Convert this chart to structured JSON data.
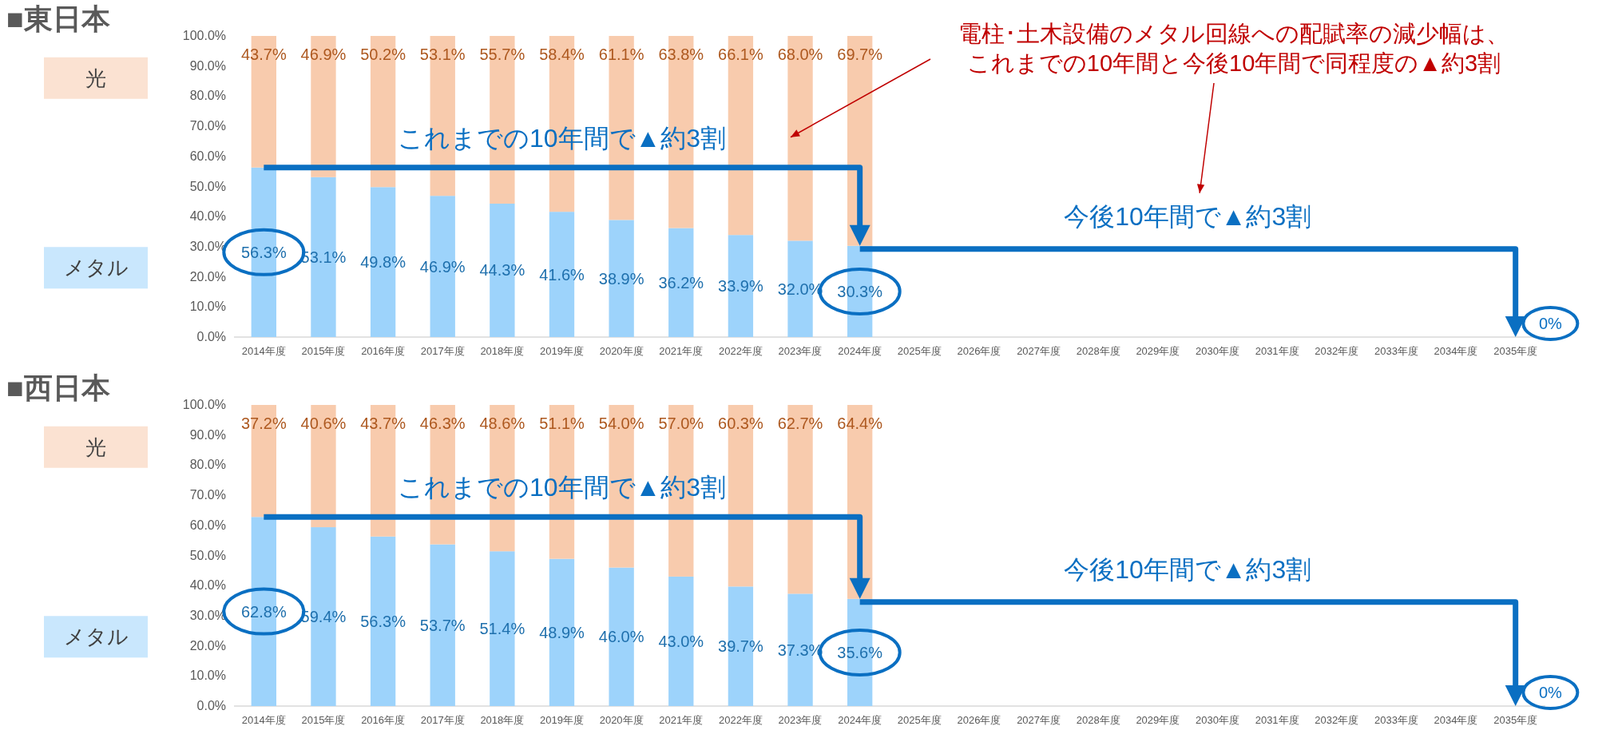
{
  "chart_data": [
    {
      "type": "bar",
      "title": "■東日本",
      "stacked": true,
      "legend": "left",
      "categories": [
        "2014年度",
        "2015年度",
        "2016年度",
        "2017年度",
        "2018年度",
        "2019年度",
        "2020年度",
        "2021年度",
        "2022年度",
        "2023年度",
        "2024年度",
        "2025年度",
        "2026年度",
        "2027年度",
        "2028年度",
        "2029年度",
        "2030年度",
        "2031年度",
        "2032年度",
        "2033年度",
        "2034年度",
        "2035年度"
      ],
      "series": [
        {
          "name": "メタル",
          "color": "#9dd3fb",
          "values": [
            56.3,
            53.1,
            49.8,
            46.9,
            44.3,
            41.6,
            38.9,
            36.2,
            33.9,
            32.0,
            30.3,
            null,
            null,
            null,
            null,
            null,
            null,
            null,
            null,
            null,
            null,
            null
          ],
          "value_labels": [
            "56.3%",
            "53.1%",
            "49.8%",
            "46.9%",
            "44.3%",
            "41.6%",
            "38.9%",
            "36.2%",
            "33.9%",
            "32.0%",
            "30.3%",
            null,
            null,
            null,
            null,
            null,
            null,
            null,
            null,
            null,
            null,
            null
          ]
        },
        {
          "name": "光",
          "color": "#f8cbad",
          "values": [
            43.7,
            46.9,
            50.2,
            53.1,
            55.7,
            58.4,
            61.1,
            63.8,
            66.1,
            68.0,
            69.7,
            null,
            null,
            null,
            null,
            null,
            null,
            null,
            null,
            null,
            null,
            null
          ],
          "value_labels": [
            "43.7%",
            "46.9%",
            "50.2%",
            "53.1%",
            "55.7%",
            "58.4%",
            "61.1%",
            "63.8%",
            "66.1%",
            "68.0%",
            "69.7%",
            null,
            null,
            null,
            null,
            null,
            null,
            null,
            null,
            null,
            null,
            null
          ]
        }
      ],
      "ylim": [
        0,
        100
      ],
      "yticks": [
        {
          "value": 0,
          "label": "0.0%"
        },
        {
          "value": 10,
          "label": "10.0%"
        },
        {
          "value": 20,
          "label": "20.0%"
        },
        {
          "value": 30,
          "label": "30.0%"
        },
        {
          "value": 40,
          "label": "40.0%"
        },
        {
          "value": 50,
          "label": "50.0%"
        },
        {
          "value": 60,
          "label": "60.0%"
        },
        {
          "value": 70,
          "label": "70.0%"
        },
        {
          "value": 80,
          "label": "80.0%"
        },
        {
          "value": 90,
          "label": "90.0%"
        },
        {
          "value": 100,
          "label": "100.0%"
        }
      ],
      "annotations": [
        "これまでの10年間で▲約3割",
        "今後10年間で▲約3割",
        "0%",
        "電柱･土木設備のメタル回線への配賦率の減少幅は、",
        "これまでの10年間と今後10年間で同程度の▲約3割"
      ]
    },
    {
      "type": "bar",
      "title": "■西日本",
      "stacked": true,
      "legend": "left",
      "categories": [
        "2014年度",
        "2015年度",
        "2016年度",
        "2017年度",
        "2018年度",
        "2019年度",
        "2020年度",
        "2021年度",
        "2022年度",
        "2023年度",
        "2024年度",
        "2025年度",
        "2026年度",
        "2027年度",
        "2028年度",
        "2029年度",
        "2030年度",
        "2031年度",
        "2032年度",
        "2033年度",
        "2034年度",
        "2035年度"
      ],
      "series": [
        {
          "name": "メタル",
          "color": "#9dd3fb",
          "values": [
            62.8,
            59.4,
            56.3,
            53.7,
            51.4,
            48.9,
            46.0,
            43.0,
            39.7,
            37.3,
            35.6,
            null,
            null,
            null,
            null,
            null,
            null,
            null,
            null,
            null,
            null,
            null
          ],
          "value_labels": [
            "62.8%",
            "59.4%",
            "56.3%",
            "53.7%",
            "51.4%",
            "48.9%",
            "46.0%",
            "43.0%",
            "39.7%",
            "37.3%",
            "35.6%",
            null,
            null,
            null,
            null,
            null,
            null,
            null,
            null,
            null,
            null,
            null
          ]
        },
        {
          "name": "光",
          "color": "#f8cbad",
          "values": [
            37.2,
            40.6,
            43.7,
            46.3,
            48.6,
            51.1,
            54.0,
            57.0,
            60.3,
            62.7,
            64.4,
            null,
            null,
            null,
            null,
            null,
            null,
            null,
            null,
            null,
            null,
            null
          ],
          "value_labels": [
            "37.2%",
            "40.6%",
            "43.7%",
            "46.3%",
            "48.6%",
            "51.1%",
            "54.0%",
            "57.0%",
            "60.3%",
            "62.7%",
            "64.4%",
            null,
            null,
            null,
            null,
            null,
            null,
            null,
            null,
            null,
            null,
            null
          ]
        }
      ],
      "ylim": [
        0,
        100
      ],
      "yticks": [
        {
          "value": 0,
          "label": "0.0%"
        },
        {
          "value": 10,
          "label": "10.0%"
        },
        {
          "value": 20,
          "label": "20.0%"
        },
        {
          "value": 30,
          "label": "30.0%"
        },
        {
          "value": 40,
          "label": "40.0%"
        },
        {
          "value": 50,
          "label": "50.0%"
        },
        {
          "value": 60,
          "label": "60.0%"
        },
        {
          "value": 70,
          "label": "70.0%"
        },
        {
          "value": 80,
          "label": "80.0%"
        },
        {
          "value": 90,
          "label": "90.0%"
        },
        {
          "value": 100,
          "label": "100.0%"
        }
      ],
      "annotations": [
        "これまでの10年間で▲約3割",
        "今後10年間で▲約3割",
        "0%"
      ]
    }
  ]
}
